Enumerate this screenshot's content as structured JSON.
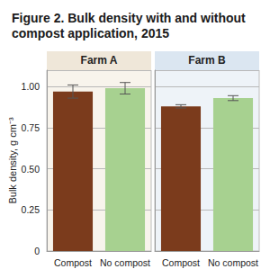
{
  "chart_data": {
    "type": "bar",
    "title": "Figure 2. Bulk density with and without compost application, 2015",
    "y_label": "Bulk density, g cm⁻³",
    "ylim": [
      0,
      1.1
    ],
    "yticks": [
      0,
      0.25,
      {
        "value": 0.5,
        "label": "0.50"
      },
      0.75,
      {
        "value": 1.0,
        "label": "1.00"
      }
    ],
    "grid": true,
    "colors": [
      "#7b3b1c",
      "#a7d190"
    ],
    "panels": [
      {
        "title": "Farm A",
        "categories": [
          "Compost",
          "No compost"
        ],
        "values": [
          0.97,
          0.99
        ],
        "errors": [
          0.04,
          0.035
        ]
      },
      {
        "title": "Farm B",
        "categories": [
          "Compost",
          "No compost"
        ],
        "values": [
          0.88,
          0.93
        ],
        "errors": [
          0.01,
          0.015
        ]
      }
    ]
  }
}
